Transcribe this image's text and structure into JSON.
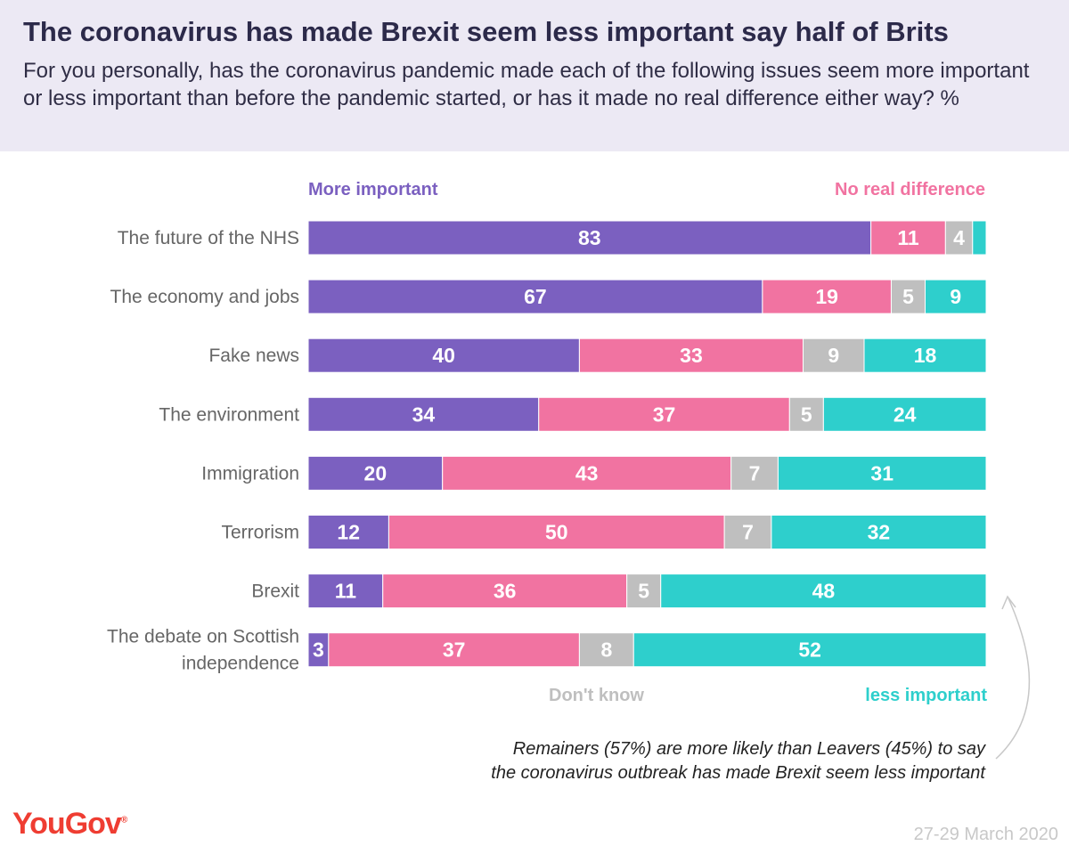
{
  "header": {
    "title": "The coronavirus has made Brexit seem less important say half of Brits",
    "subtitle": "For you personally, has the coronavirus pandemic made each of the following issues seem more important or less important than before the pandemic started, or has it made no real difference either way? %"
  },
  "legend": {
    "more_important": "More important",
    "no_real_difference": "No real difference",
    "dont_know": "Don't know",
    "less_important": "less important"
  },
  "note": {
    "line1": "Remainers (57%) are more likely than Leavers (45%) to say",
    "line2": "the coronavirus outbreak has made Brexit seem less important"
  },
  "footer": {
    "logo": "YouGov",
    "date": "27-29 March 2020"
  },
  "colors": {
    "more_important": "#7b60c0",
    "no_real_difference": "#f173a1",
    "dont_know": "#bfbfbf",
    "less_important": "#2ecfcc"
  },
  "chart_data": {
    "type": "bar",
    "orientation": "horizontal",
    "stacked": true,
    "xlim": [
      0,
      100
    ],
    "categories": [
      [
        "The future of the NHS"
      ],
      [
        "The economy and jobs"
      ],
      [
        "Fake news"
      ],
      [
        "The environment"
      ],
      [
        "Immigration"
      ],
      [
        "Terrorism"
      ],
      [
        "Brexit"
      ],
      [
        "The debate on Scottish",
        "independence"
      ]
    ],
    "series": [
      {
        "name": "More important",
        "values": [
          83,
          67,
          40,
          34,
          20,
          12,
          11,
          3
        ]
      },
      {
        "name": "No real difference",
        "values": [
          11,
          19,
          33,
          37,
          43,
          50,
          36,
          37
        ]
      },
      {
        "name": "Don't know",
        "values": [
          4,
          5,
          9,
          5,
          7,
          7,
          5,
          8
        ]
      },
      {
        "name": "less important",
        "values": [
          2,
          9,
          18,
          24,
          31,
          32,
          48,
          52
        ]
      }
    ],
    "value_labels_shown": [
      [
        true,
        true,
        true,
        false
      ],
      [
        true,
        true,
        true,
        true
      ],
      [
        true,
        true,
        true,
        true
      ],
      [
        true,
        true,
        true,
        true
      ],
      [
        true,
        true,
        true,
        true
      ],
      [
        true,
        true,
        true,
        true
      ],
      [
        true,
        true,
        true,
        true
      ],
      [
        true,
        true,
        true,
        true
      ]
    ]
  }
}
